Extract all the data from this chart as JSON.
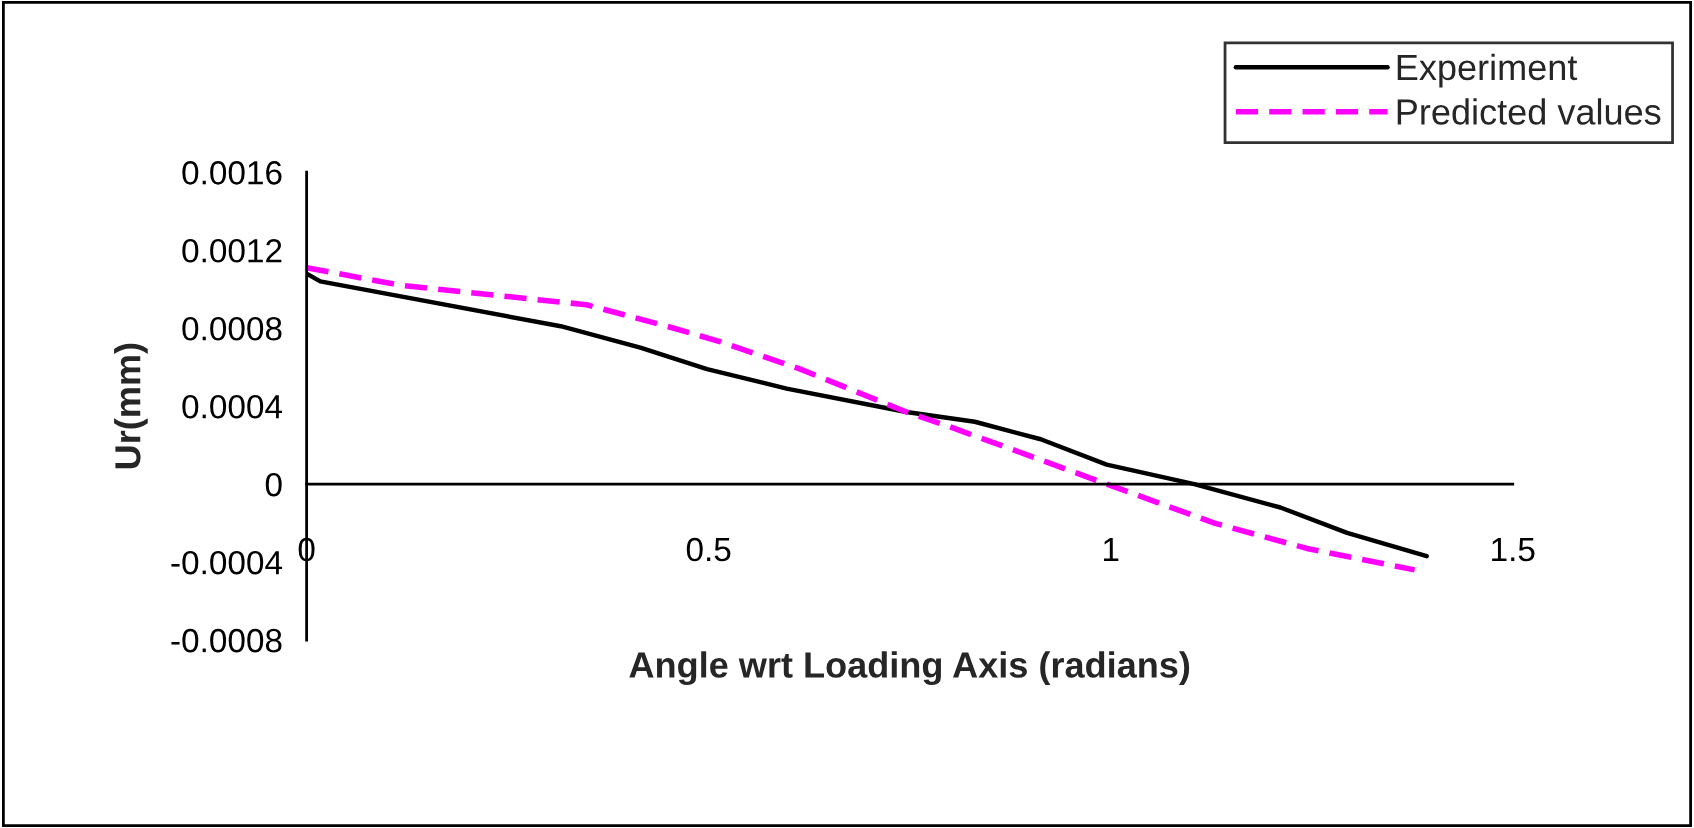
{
  "chart_data": {
    "type": "line",
    "xlabel": "Angle wrt Loading Axis (radians)",
    "ylabel": "Ur(mm)",
    "series": [
      {
        "name": "Experiment",
        "color": "#000000",
        "line_style": "solid",
        "x": [
          0,
          0.017,
          0.316,
          0.415,
          0.498,
          0.597,
          0.746,
          0.831,
          0.913,
          0.995,
          1.104,
          1.211,
          1.294,
          1.393
        ],
        "values": [
          0.00108,
          0.00104,
          0.00081,
          0.0007,
          0.00059,
          0.00049,
          0.00037,
          0.00032,
          0.00023,
          0.0001,
          0,
          -0.00012,
          -0.00025,
          -0.00037
        ]
      },
      {
        "name": "Predicted values",
        "color": "#ff00ff",
        "line_style": "dashed",
        "x": [
          0,
          0.117,
          0.348,
          0.448,
          0.515,
          0.614,
          0.746,
          0.796,
          0.896,
          0.995,
          1.129,
          1.244,
          1.378
        ],
        "values": [
          0.00111,
          0.00102,
          0.00092,
          0.00081,
          0.00073,
          0.00059,
          0.00037,
          0.0003,
          0.00015,
          0,
          -0.0002,
          -0.00033,
          -0.00044
        ]
      }
    ],
    "xlim": [
      0,
      1.5
    ],
    "xticks": [
      0,
      0.5,
      1,
      1.5
    ],
    "ylim": [
      -0.0008,
      0.0016
    ],
    "yticks": [
      -0.0008,
      -0.0004,
      0,
      0.0004,
      0.0008,
      0.0012,
      0.0016
    ],
    "grid": false,
    "legend": "top right"
  }
}
